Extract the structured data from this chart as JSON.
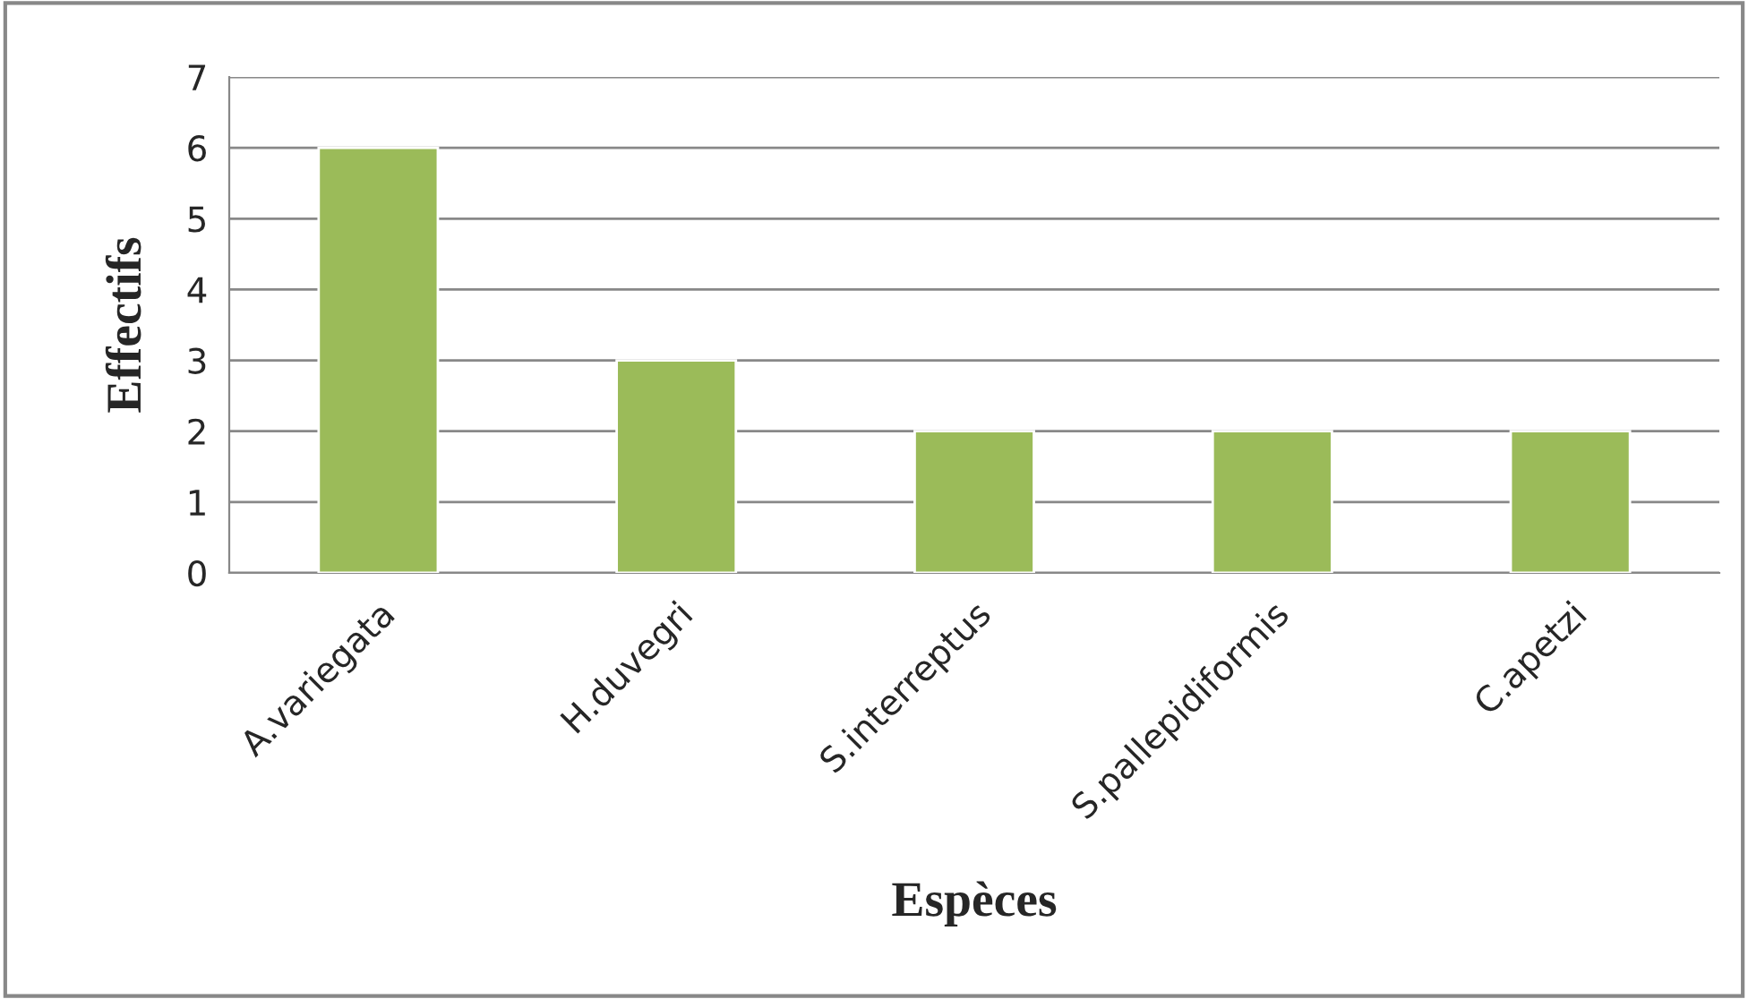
{
  "chart_data": {
    "type": "bar",
    "xlabel": "Espèces",
    "ylabel": "Effectifs",
    "categories": [
      "A.variegata",
      "H.duvegri",
      "S.interreptus",
      "S.pallepidiformis",
      "C.apetzi"
    ],
    "values": [
      6,
      3,
      2,
      2,
      2
    ],
    "color": "#9bbb59",
    "ylim": [
      0,
      7
    ],
    "yticks": [
      0,
      1,
      2,
      3,
      4,
      5,
      6,
      7
    ],
    "grid": "y",
    "legend": false
  }
}
